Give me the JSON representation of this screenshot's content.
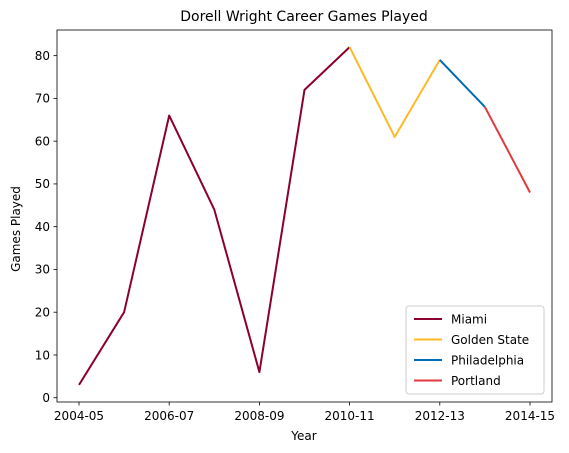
{
  "chart_data": {
    "type": "line",
    "title": "Dorell Wright Career Games Played",
    "xlabel": "Year",
    "ylabel": "Games Played",
    "x": [
      "2004-05",
      "2005-06",
      "2006-07",
      "2007-08",
      "2008-09",
      "2009-10",
      "2010-11",
      "2011-12",
      "2012-13",
      "2013-14",
      "2014-15"
    ],
    "x_tick_labels": [
      "2004-05",
      "2006-07",
      "2008-09",
      "2010-11",
      "2012-13",
      "2014-15"
    ],
    "y_ticks": [
      0,
      10,
      20,
      30,
      40,
      50,
      60,
      70,
      80
    ],
    "ylim": [
      -1,
      86
    ],
    "grid": false,
    "legend_position": "lower-right",
    "series": [
      {
        "name": "Miami",
        "color": "#8b0030",
        "x": [
          "2004-05",
          "2005-06",
          "2006-07",
          "2007-08",
          "2008-09",
          "2009-10",
          "2010-11"
        ],
        "values": [
          3,
          20,
          66,
          44,
          6,
          72,
          82
        ]
      },
      {
        "name": "Golden State",
        "color": "#fdb927",
        "x": [
          "2010-11",
          "2011-12",
          "2012-13"
        ],
        "values": [
          82,
          61,
          79
        ]
      },
      {
        "name": "Philadelphia",
        "color": "#006bb6",
        "x": [
          "2012-13",
          "2013-14"
        ],
        "values": [
          79,
          68
        ]
      },
      {
        "name": "Portland",
        "color": "#e03a3e",
        "x": [
          "2013-14",
          "2014-15"
        ],
        "values": [
          68,
          48
        ]
      }
    ]
  }
}
